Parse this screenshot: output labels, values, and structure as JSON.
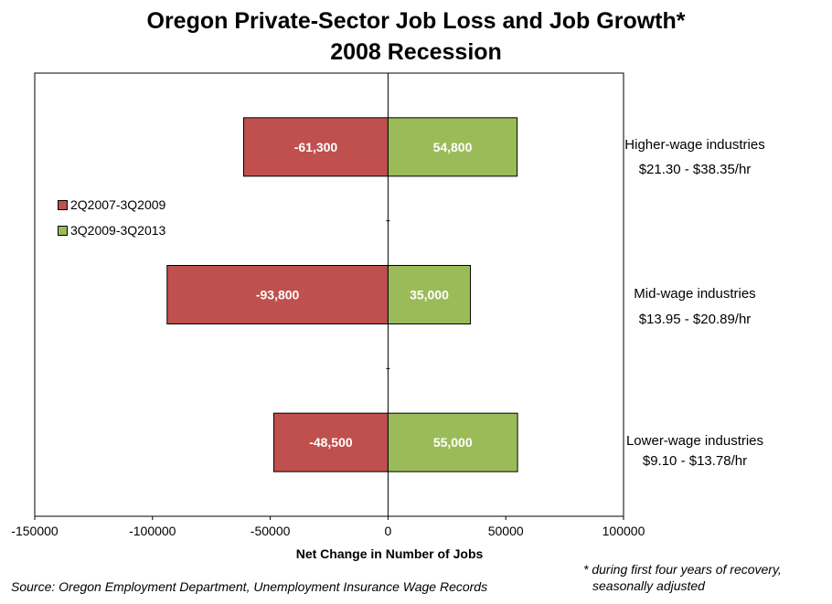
{
  "chart_data": {
    "type": "bar",
    "orientation": "horizontal",
    "title": "Oregon Private-Sector Job Loss and Job Growth*",
    "subtitle": "2008 Recession",
    "xlabel": "Net Change in Number of Jobs",
    "ylabel": "",
    "xlim": [
      -150000,
      100000
    ],
    "xticks": [
      -150000,
      -100000,
      -50000,
      0,
      50000,
      100000
    ],
    "xtick_labels": [
      "-150000",
      "-100000",
      "-50000",
      "0",
      "50000",
      "100000"
    ],
    "categories": [
      {
        "name": "Higher-wage industries",
        "range": "$21.30 - $38.35/hr"
      },
      {
        "name": "Mid-wage industries",
        "range": "$13.95 - $20.89/hr"
      },
      {
        "name": "Lower-wage industries",
        "range": "$9.10 - $13.78/hr"
      }
    ],
    "series": [
      {
        "name": "2Q2007-3Q2009",
        "color": "#c0504d",
        "values": [
          -61300,
          -93800,
          -48500
        ],
        "labels": [
          "-61,300",
          "-93,800",
          "-48,500"
        ]
      },
      {
        "name": "3Q2009-3Q2013",
        "color": "#9bbb59",
        "values": [
          54800,
          35000,
          55000
        ],
        "labels": [
          "54,800",
          "35,000",
          "55,000"
        ]
      }
    ],
    "legend": "upper-left"
  },
  "source": "Source: Oregon Employment Department, Unemployment Insurance Wage Records",
  "footnote_line1": "* during first four years of recovery,",
  "footnote_line2": "seasonally adjusted"
}
